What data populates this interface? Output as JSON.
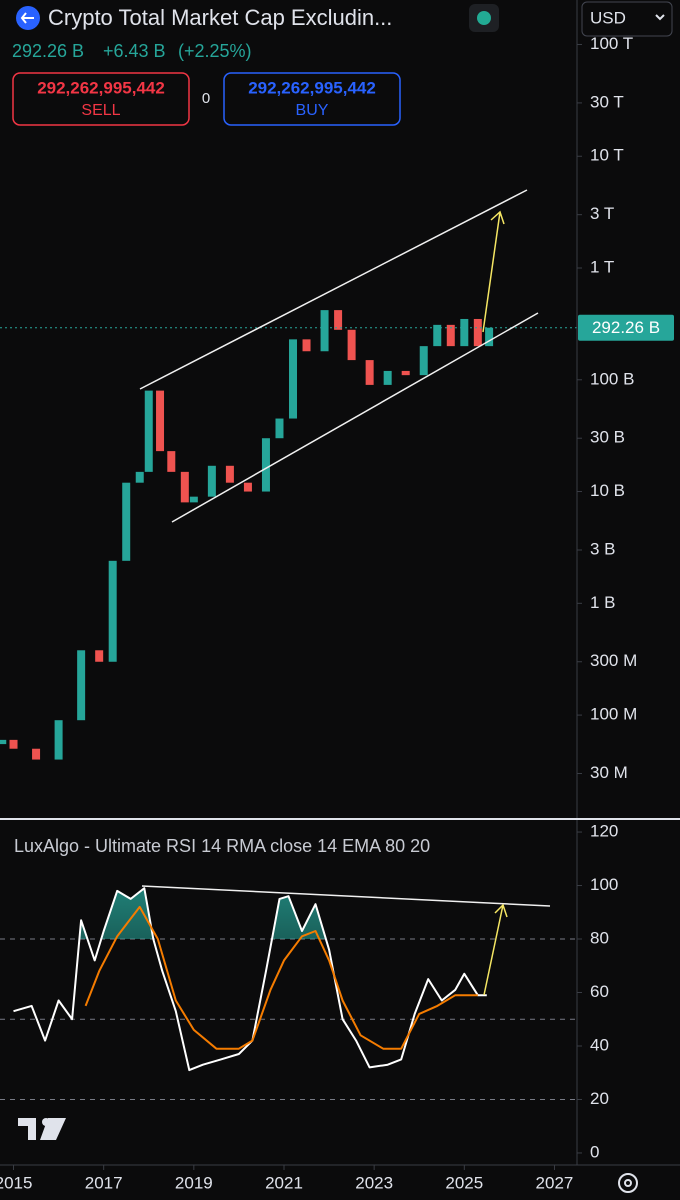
{
  "header": {
    "title": "Crypto Total Market Cap Excludin...",
    "price": "292.26 B",
    "change": "+6.43 B",
    "change_pct": "(+2.25%)",
    "sell_price": "292,262,995,442",
    "sell": "SELL",
    "spread": "0",
    "buy_price": "292,262,995,442",
    "buy": "BUY",
    "currency": "USD"
  },
  "chart_data": [
    {
      "type": "candlestick",
      "log_scale": true,
      "up_color": "#26a69a",
      "down_color": "#ef5350",
      "x": [
        2014.75,
        2015.0,
        2015.5,
        2016.0,
        2016.5,
        2016.9,
        2017.2,
        2017.5,
        2017.8,
        2018.0,
        2018.25,
        2018.5,
        2018.8,
        2019.0,
        2019.4,
        2019.8,
        2020.2,
        2020.6,
        2020.9,
        2021.2,
        2021.5,
        2021.9,
        2022.2,
        2022.5,
        2022.9,
        2023.3,
        2023.7,
        2024.1,
        2024.4,
        2024.7,
        2025.0,
        2025.3,
        2025.55
      ],
      "open": [
        55000000,
        60000000,
        50000000,
        40000000,
        90000000,
        380000000,
        300000000,
        2400000000,
        12000000000,
        15000000000,
        80000000000,
        23000000000,
        15000000000,
        8000000000,
        9000000000,
        17000000000,
        12000000000,
        10000000000,
        30000000000,
        45000000000,
        230000000000,
        180000000000,
        420000000000,
        280000000000,
        150000000000,
        90000000000,
        120000000000,
        110000000000,
        200000000000,
        310000000000,
        200000000000,
        350000000000,
        200000000000
      ],
      "close": [
        60000000,
        50000000,
        40000000,
        90000000,
        380000000,
        300000000,
        2400000000,
        12000000000,
        15000000000,
        80000000000,
        23000000000,
        15000000000,
        8000000000,
        9000000000,
        17000000000,
        12000000000,
        10000000000,
        30000000000,
        45000000000,
        230000000000,
        180000000000,
        420000000000,
        280000000000,
        150000000000,
        90000000000,
        120000000000,
        110000000000,
        200000000000,
        310000000000,
        200000000000,
        350000000000,
        200000000000,
        292262995442
      ],
      "xlim": [
        2014.7,
        2027.5
      ],
      "ylim": [
        12000000,
        250000000000000
      ],
      "yticks": [
        {
          "value": 100000000000000,
          "label": "100 T"
        },
        {
          "value": 30000000000000,
          "label": "30 T"
        },
        {
          "value": 10000000000000,
          "label": "10 T"
        },
        {
          "value": 3000000000000,
          "label": "3 T"
        },
        {
          "value": 1000000000000,
          "label": "1 T"
        },
        {
          "value": 100000000000,
          "label": "100 B"
        },
        {
          "value": 30000000000,
          "label": "30 B"
        },
        {
          "value": 10000000000,
          "label": "10 B"
        },
        {
          "value": 3000000000,
          "label": "3 B"
        },
        {
          "value": 1000000000,
          "label": "1 B"
        },
        {
          "value": 300000000,
          "label": "300 M"
        },
        {
          "value": 100000000,
          "label": "100 M"
        },
        {
          "value": 30000000,
          "label": "30 M"
        }
      ],
      "last_price": {
        "value": 292262995442,
        "label": "292.26 B"
      }
    },
    {
      "type": "line",
      "title": "LuxAlgo - Ultimate RSI 14 RMA close 14 EMA 80 20",
      "series": [
        {
          "color": "#ffffff",
          "x": [
            2015.0,
            2015.4,
            2015.7,
            2016.0,
            2016.3,
            2016.5,
            2016.8,
            2017.0,
            2017.3,
            2017.6,
            2017.9,
            2018.1,
            2018.3,
            2018.6,
            2018.9,
            2019.2,
            2019.6,
            2020.0,
            2020.3,
            2020.6,
            2020.9,
            2021.1,
            2021.4,
            2021.7,
            2022.0,
            2022.3,
            2022.6,
            2022.9,
            2023.3,
            2023.6,
            2023.9,
            2024.2,
            2024.5,
            2024.8,
            2025.0,
            2025.3,
            2025.5
          ],
          "values": [
            53,
            55,
            42,
            57,
            50,
            87,
            72,
            83,
            98,
            95,
            99,
            80,
            68,
            53,
            31,
            33,
            35,
            37,
            42,
            68,
            95,
            96,
            83,
            93,
            76,
            50,
            42,
            32,
            33,
            35,
            52,
            65,
            57,
            61,
            67,
            59,
            59
          ]
        },
        {
          "color": "#f57c00",
          "x": [
            2016.6,
            2016.9,
            2017.3,
            2017.8,
            2018.2,
            2018.6,
            2019.0,
            2019.5,
            2020.0,
            2020.3,
            2020.7,
            2021.0,
            2021.4,
            2021.7,
            2022.0,
            2022.3,
            2022.7,
            2023.2,
            2023.6,
            2024.0,
            2024.4,
            2024.8,
            2025.3
          ],
          "values": [
            55,
            68,
            81,
            92,
            80,
            57,
            46,
            39,
            39,
            42,
            61,
            72,
            81,
            83,
            72,
            57,
            44,
            39,
            39,
            52,
            55,
            59,
            59
          ]
        }
      ],
      "levels": [
        80,
        50,
        20
      ],
      "xlim": [
        2014.7,
        2027.5
      ],
      "xticks": [
        2015,
        2017,
        2019,
        2021,
        2023,
        2025,
        2027
      ],
      "ylim": [
        -4.5,
        124.5
      ],
      "yticks": [
        120,
        100,
        80,
        60,
        40,
        20,
        0
      ]
    }
  ]
}
